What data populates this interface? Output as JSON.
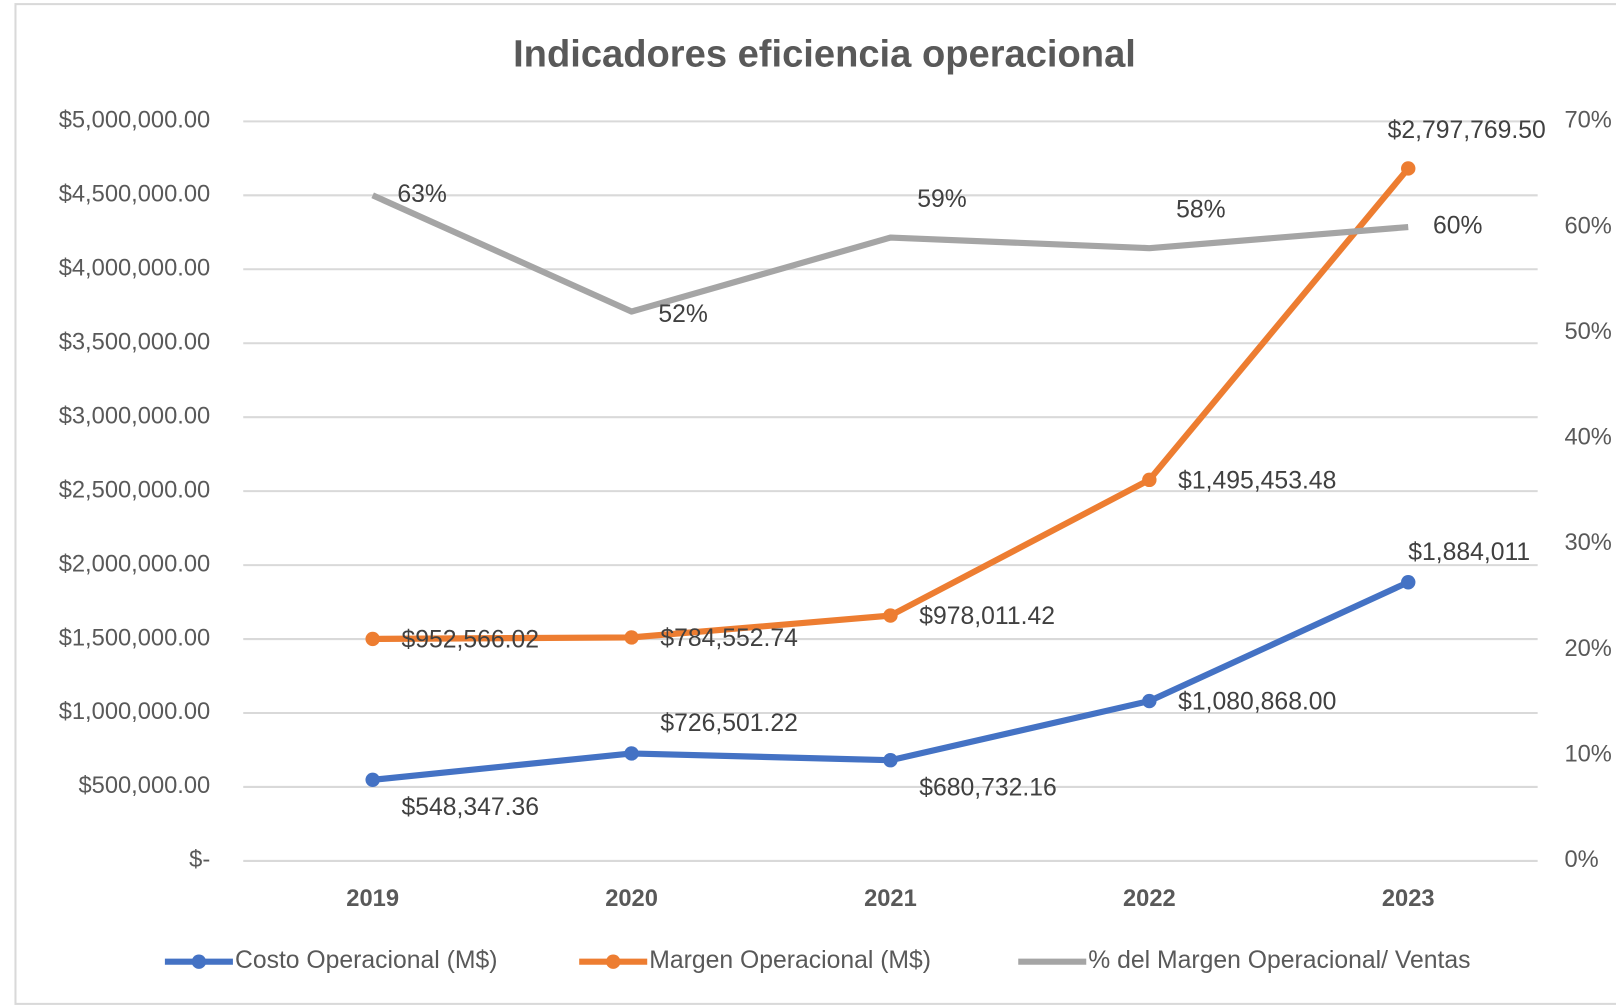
{
  "chart_data": {
    "type": "line",
    "title": "Indicadores eficiencia operacional",
    "stacked": true,
    "categories": [
      "2019",
      "2020",
      "2021",
      "2022",
      "2023"
    ],
    "series": [
      {
        "name": "Costo Operacional (M$)",
        "color": "#4472c4",
        "values": [
          548347.36,
          726501.22,
          680732.16,
          1080868,
          1884011
        ],
        "value_labels": [
          "$548,347.36",
          "$726,501.22",
          "$680,732.16",
          "$1,080,868.00",
          "$1,884,011"
        ]
      },
      {
        "name": "Margen Operacional (M$)",
        "color": "#ed7d31",
        "values": [
          952566.02,
          784552.74,
          978011.42,
          1495453.48,
          2797769.5
        ],
        "value_labels": [
          "$952,566.02",
          "$784,552.74",
          "$978,011.42",
          "$1,495,453.48",
          "$2,797,769.50"
        ]
      },
      {
        "name": "% del Margen Operacional/ Ventas",
        "color": "#a5a5a5",
        "axis": "y2",
        "values": [
          63,
          52,
          59,
          58,
          60
        ],
        "value_labels": [
          "63%",
          "52%",
          "59%",
          "58%",
          "60%"
        ]
      }
    ],
    "ylim": [
      0,
      5000000
    ],
    "yticks": [
      {
        "value": 0,
        "label": "$-"
      },
      {
        "value": 500000,
        "label": "$500,000.00"
      },
      {
        "value": 1000000,
        "label": "$1,000,000.00"
      },
      {
        "value": 1500000,
        "label": "$1,500,000.00"
      },
      {
        "value": 2000000,
        "label": "$2,000,000.00"
      },
      {
        "value": 2500000,
        "label": "$2,500,000.00"
      },
      {
        "value": 3000000,
        "label": "$3,000,000.00"
      },
      {
        "value": 3500000,
        "label": "$3,500,000.00"
      },
      {
        "value": 4000000,
        "label": "$4,000,000.00"
      },
      {
        "value": 4500000,
        "label": "$4,500,000.00"
      },
      {
        "value": 5000000,
        "label": "$5,000,000.00"
      }
    ],
    "y2lim": [
      0,
      70
    ],
    "y2ticks": [
      {
        "value": 0,
        "label": "0%"
      },
      {
        "value": 10,
        "label": "10%"
      },
      {
        "value": 20,
        "label": "20%"
      },
      {
        "value": 30,
        "label": "30%"
      },
      {
        "value": 40,
        "label": "40%"
      },
      {
        "value": 50,
        "label": "50%"
      },
      {
        "value": 60,
        "label": "60%"
      },
      {
        "value": 70,
        "label": "70%"
      }
    ],
    "grid": true,
    "legend": "bottom"
  }
}
